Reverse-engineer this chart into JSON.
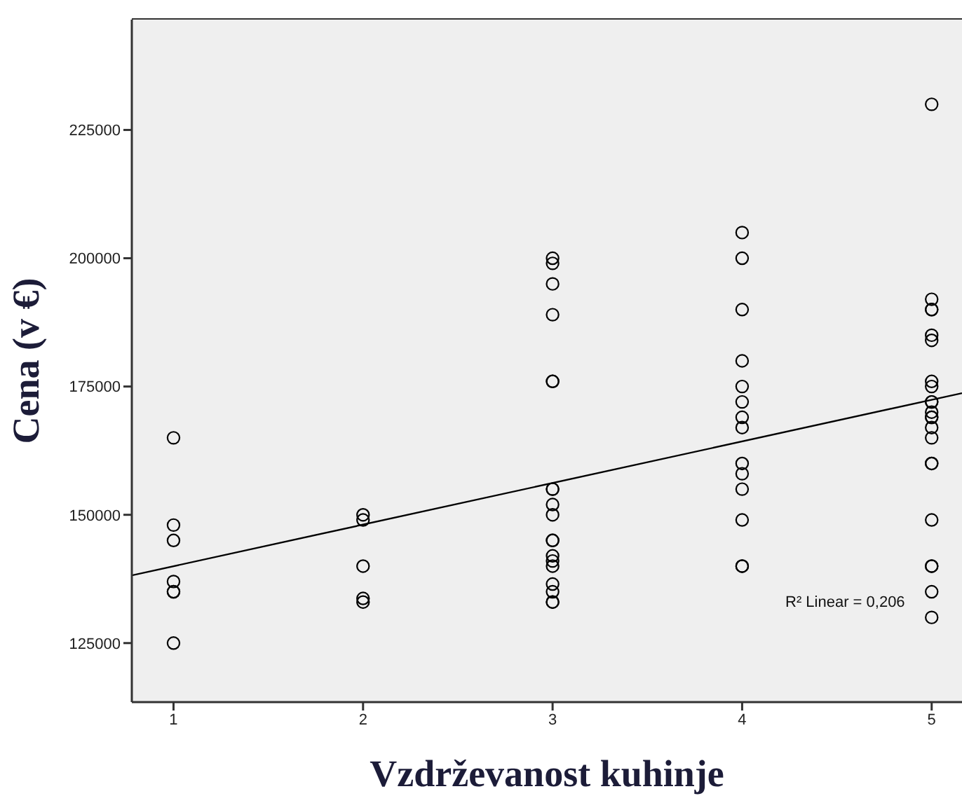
{
  "chart_data": {
    "type": "scatter",
    "xlabel": "Vzdrževanost kuhinje",
    "ylabel": "Cena (v €)",
    "xlim": [
      0.78,
      5.16
    ],
    "xticks": [
      1,
      2,
      3,
      4,
      5
    ],
    "ylim": [
      113500,
      246500
    ],
    "yticks": [
      125000,
      150000,
      175000,
      200000,
      225000
    ],
    "grid": false,
    "marker": "circle",
    "annotations": [
      "R² Linear = 0,206"
    ],
    "series": [
      {
        "color": "#000000",
        "x": [
          1,
          1,
          1,
          1,
          1,
          1,
          1,
          2,
          2,
          2,
          2,
          2,
          3,
          3,
          3,
          3,
          3,
          3,
          3,
          3,
          3,
          3,
          3,
          3,
          3,
          3,
          3,
          3,
          3,
          3,
          3,
          4,
          4,
          4,
          4,
          4,
          4,
          4,
          4,
          4,
          4,
          4,
          4,
          4,
          4,
          5,
          5,
          5,
          5,
          5,
          5,
          5,
          5,
          5,
          5,
          5,
          5,
          5,
          5,
          5,
          5,
          5,
          5,
          5,
          5,
          5,
          5
        ],
        "values": [
          165000,
          148000,
          145000,
          137000,
          135000,
          135000,
          125000,
          150000,
          149000,
          140000,
          133700,
          133000,
          200000,
          199000,
          195000,
          189000,
          176000,
          176000,
          155000,
          155000,
          152000,
          150000,
          145000,
          145000,
          142000,
          141000,
          140000,
          136500,
          135000,
          133000,
          133000,
          205000,
          200000,
          190000,
          180000,
          175000,
          172000,
          169000,
          167000,
          160000,
          158000,
          155000,
          149000,
          140000,
          140000,
          230000,
          192000,
          190000,
          190000,
          185000,
          184000,
          176000,
          175000,
          172000,
          170000,
          169000,
          167000,
          165000,
          160000,
          160000,
          149000,
          140000,
          140000,
          135000,
          130000,
          172000,
          169000
        ]
      },
      {
        "type": "line",
        "color": "#000000",
        "line_style": "solid",
        "marker": "none",
        "x": [
          0.78,
          5.16
        ],
        "values": [
          138200,
          173700
        ]
      }
    ]
  }
}
